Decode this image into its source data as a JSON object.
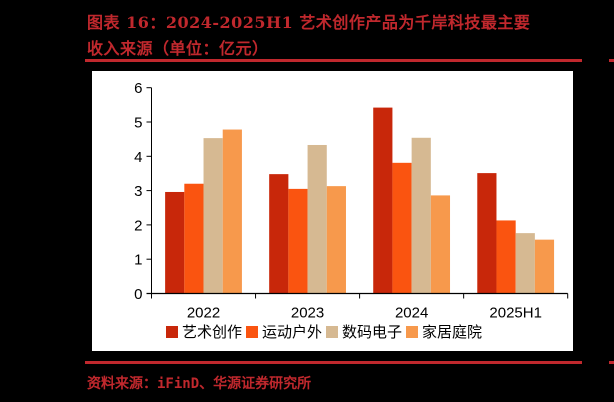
{
  "header": {
    "title_line1": "图表 16：2024-2025H1 艺术创作产品为千岸科技最主要",
    "title_line2": "收入来源（单位：亿元）"
  },
  "footer": {
    "source": "资料来源：iFinD、华源证券研究所"
  },
  "colors": {
    "accent": "#c0282d",
    "series": [
      "#C8270A",
      "#FA5410",
      "#D6B992",
      "#F7994C"
    ]
  },
  "chart_data": {
    "type": "bar",
    "title": "2024-2025H1 艺术创作产品为千岸科技最主要收入来源（单位：亿元）",
    "xlabel": "",
    "ylabel": "",
    "categories": [
      "2022",
      "2023",
      "2024",
      "2025H1"
    ],
    "series": [
      {
        "name": "艺术创作",
        "values": [
          2.96,
          3.48,
          5.42,
          3.51
        ]
      },
      {
        "name": "运动户外",
        "values": [
          3.2,
          3.05,
          3.81,
          2.13
        ]
      },
      {
        "name": "数码电子",
        "values": [
          4.53,
          4.33,
          4.54,
          1.76
        ]
      },
      {
        "name": "家居庭院",
        "values": [
          4.78,
          3.13,
          2.86,
          1.57
        ]
      }
    ],
    "ylim": [
      0,
      6
    ],
    "yticks": [
      0,
      1,
      2,
      3,
      4,
      5,
      6
    ],
    "grid": false,
    "legend_position": "bottom"
  }
}
